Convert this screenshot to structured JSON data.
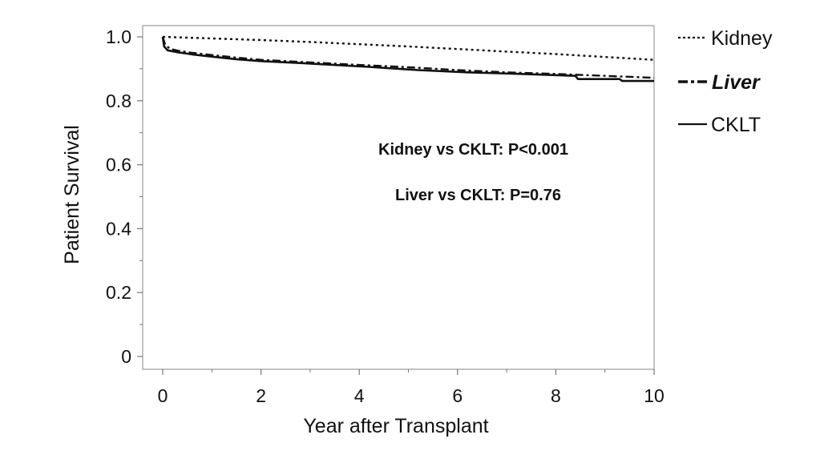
{
  "chart_data": {
    "type": "line",
    "title": "",
    "xlabel": "Year after Transplant",
    "ylabel": "Patient Survival",
    "xlim": [
      0,
      10
    ],
    "ylim": [
      0,
      1
    ],
    "xticks": [
      0,
      2,
      4,
      6,
      8,
      10
    ],
    "xtick_labels": [
      "0",
      "2",
      "4",
      "6",
      "8",
      "10"
    ],
    "yticks": [
      0,
      0.2,
      0.4,
      0.6,
      0.8,
      1.0
    ],
    "ytick_labels": [
      "0",
      "0.2",
      "0.4",
      "0.6",
      "0.8",
      "1.0"
    ],
    "grid": false,
    "legend_position": "right",
    "series": [
      {
        "name": "Kidney",
        "style": "dotted",
        "color": "#111111",
        "x": [
          0,
          1,
          2,
          3,
          4,
          5,
          6,
          7,
          8,
          9,
          10
        ],
        "y": [
          1.0,
          0.995,
          0.99,
          0.984,
          0.977,
          0.97,
          0.962,
          0.954,
          0.946,
          0.937,
          0.928
        ]
      },
      {
        "name": "Liver",
        "style": "dash-dot",
        "color": "#111111",
        "x": [
          0,
          0.05,
          0.15,
          0.3,
          0.6,
          1,
          1.5,
          2,
          3,
          4,
          5,
          6,
          7,
          8,
          9,
          10
        ],
        "y": [
          1.0,
          0.975,
          0.963,
          0.957,
          0.95,
          0.943,
          0.935,
          0.928,
          0.92,
          0.912,
          0.905,
          0.896,
          0.889,
          0.884,
          0.878,
          0.872
        ]
      },
      {
        "name": "CKLT",
        "style": "solid",
        "color": "#111111",
        "x": [
          0,
          0.03,
          0.1,
          0.3,
          0.6,
          1,
          1.5,
          2,
          2.8,
          3.5,
          4.2,
          5.2,
          6.2,
          7.3,
          8.4,
          8.45,
          9.3,
          9.35,
          10
        ],
        "y": [
          1.0,
          0.97,
          0.958,
          0.952,
          0.945,
          0.938,
          0.93,
          0.924,
          0.918,
          0.912,
          0.906,
          0.896,
          0.889,
          0.884,
          0.878,
          0.868,
          0.868,
          0.862,
          0.862
        ]
      }
    ],
    "annotations": [
      {
        "text": "Kidney vs CKLT: P<0.001"
      },
      {
        "text": "Liver vs CKLT: P=0.76"
      }
    ]
  }
}
